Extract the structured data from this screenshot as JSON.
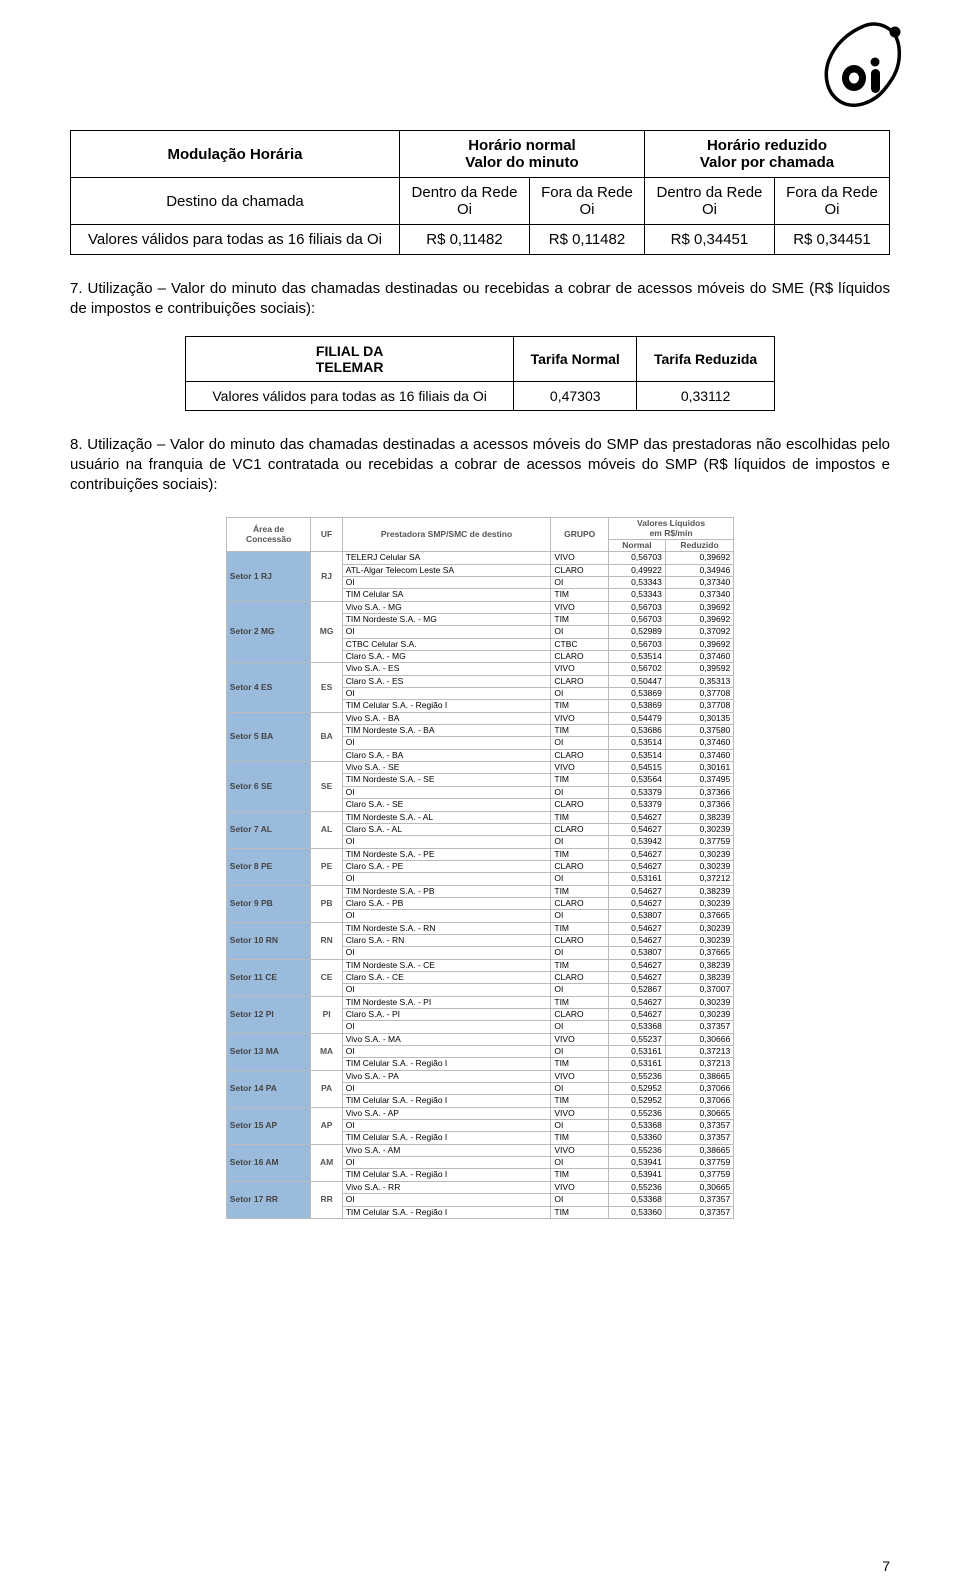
{
  "logo_label": "oi",
  "table1": {
    "r0c0": "Modulação Horária",
    "r0c1": "Horário normal\nValor do minuto",
    "r0c2": "Horário reduzido\nValor por chamada",
    "r1c0": "Destino da chamada",
    "r1c1": "Dentro da Rede\nOi",
    "r1c2": "Fora da Rede\nOi",
    "r1c3": "Dentro da Rede\nOi",
    "r1c4": "Fora da Rede\nOi",
    "r2c0": "Valores válidos para todas as 16 filiais da Oi",
    "r2c1": "R$ 0,11482",
    "r2c2": "R$ 0,11482",
    "r2c3": "R$ 0,34451",
    "r2c4": "R$ 0,34451"
  },
  "section7": "7. Utilização – Valor do minuto das chamadas destinadas ou recebidas a cobrar de acessos móveis do SME (R$ líquidos de impostos e contribuições sociais):",
  "table2": {
    "h0": "FILIAL DA\nTELEMAR",
    "h1": "Tarifa Normal",
    "h2": "Tarifa Reduzida",
    "r0": "Valores válidos para todas as 16 filiais da Oi",
    "v1": "0,47303",
    "v2": "0,33112"
  },
  "section8": "8. Utilização – Valor do minuto das chamadas destinadas a acessos móveis do SMP das prestadoras não escolhidas pelo usuário na franquia de VC1 contratada ou recebidas a cobrar de acessos móveis do SMP (R$ líquidos de impostos e contribuições sociais):",
  "big_header": {
    "area": "Área de\nConcessão",
    "uf": "UF",
    "dest": "Prestadora SMP/SMC de destino",
    "grupo": "GRUPO",
    "valores": "Valores Líquidos\nem R$/min",
    "normal": "Normal",
    "reduzido": "Reduzido"
  },
  "sectors": [
    {
      "setor": "Setor 1 RJ",
      "uf": "RJ",
      "rows": [
        [
          "TELERJ Celular SA",
          "VIVO",
          "0,56703",
          "0,39692"
        ],
        [
          "ATL-Algar Telecom Leste SA",
          "CLARO",
          "0,49922",
          "0,34946"
        ],
        [
          "OI",
          "OI",
          "0,53343",
          "0,37340"
        ],
        [
          "TIM Celular SA",
          "TIM",
          "0,53343",
          "0,37340"
        ]
      ]
    },
    {
      "setor": "Setor 2 MG",
      "uf": "MG",
      "rows": [
        [
          "Vivo S.A. - MG",
          "VIVO",
          "0,56703",
          "0,39692"
        ],
        [
          "TIM Nordeste S.A. - MG",
          "TIM",
          "0,56703",
          "0,39692"
        ],
        [
          "OI",
          "OI",
          "0,52989",
          "0,37092"
        ],
        [
          "CTBC Celular S.A.",
          "CTBC",
          "0,56703",
          "0,39692"
        ],
        [
          "Claro S.A. - MG",
          "CLARO",
          "0,53514",
          "0,37460"
        ]
      ]
    },
    {
      "setor": "Setor 4 ES",
      "uf": "ES",
      "rows": [
        [
          "Vivo S.A. - ES",
          "VIVO",
          "0,56702",
          "0,39592"
        ],
        [
          "Claro S.A. - ES",
          "CLARO",
          "0,50447",
          "0,35313"
        ],
        [
          "OI",
          "OI",
          "0,53869",
          "0,37708"
        ],
        [
          "TIM Celular S.A. - Região I",
          "TIM",
          "0,53869",
          "0,37708"
        ]
      ]
    },
    {
      "setor": "Setor 5 BA",
      "uf": "BA",
      "rows": [
        [
          "Vivo S.A. - BA",
          "VIVO",
          "0,54479",
          "0,30135"
        ],
        [
          "TIM Nordeste S.A. - BA",
          "TIM",
          "0,53686",
          "0,37580"
        ],
        [
          "OI",
          "OI",
          "0,53514",
          "0,37460"
        ],
        [
          "Claro S.A. - BA",
          "CLARO",
          "0,53514",
          "0,37460"
        ]
      ]
    },
    {
      "setor": "Setor 6 SE",
      "uf": "SE",
      "rows": [
        [
          "Vivo S.A. - SE",
          "VIVO",
          "0,54515",
          "0,30161"
        ],
        [
          "TIM Nordeste S.A. - SE",
          "TIM",
          "0,53564",
          "0,37495"
        ],
        [
          "OI",
          "OI",
          "0,53379",
          "0,37366"
        ],
        [
          "Claro S.A. - SE",
          "CLARO",
          "0,53379",
          "0,37366"
        ]
      ]
    },
    {
      "setor": "Setor 7 AL",
      "uf": "AL",
      "rows": [
        [
          "TIM Nordeste S.A. - AL",
          "TIM",
          "0,54627",
          "0,38239"
        ],
        [
          "Claro S.A. - AL",
          "CLARO",
          "0,54627",
          "0,30239"
        ],
        [
          "OI",
          "OI",
          "0,53942",
          "0,37759"
        ]
      ]
    },
    {
      "setor": "Setor 8 PE",
      "uf": "PE",
      "rows": [
        [
          "TIM Nordeste S.A. - PE",
          "TIM",
          "0,54627",
          "0,30239"
        ],
        [
          "Claro S.A. - PE",
          "CLARO",
          "0,54627",
          "0,30239"
        ],
        [
          "OI",
          "OI",
          "0,53161",
          "0,37212"
        ]
      ]
    },
    {
      "setor": "Setor 9 PB",
      "uf": "PB",
      "rows": [
        [
          "TIM Nordeste S.A. - PB",
          "TIM",
          "0,54627",
          "0,38239"
        ],
        [
          "Claro S.A. - PB",
          "CLARO",
          "0,54627",
          "0,30239"
        ],
        [
          "OI",
          "OI",
          "0,53807",
          "0,37665"
        ]
      ]
    },
    {
      "setor": "Setor 10 RN",
      "uf": "RN",
      "rows": [
        [
          "TIM Nordeste S.A. - RN",
          "TIM",
          "0,54627",
          "0,30239"
        ],
        [
          "Claro S.A. - RN",
          "CLARO",
          "0,54627",
          "0,30239"
        ],
        [
          "OI",
          "OI",
          "0,53807",
          "0,37665"
        ]
      ]
    },
    {
      "setor": "Setor 11 CE",
      "uf": "CE",
      "rows": [
        [
          "TIM Nordeste S.A. - CE",
          "TIM",
          "0,54627",
          "0,38239"
        ],
        [
          "Claro S.A. - CE",
          "CLARO",
          "0,54627",
          "0,38239"
        ],
        [
          "OI",
          "OI",
          "0,52867",
          "0,37007"
        ]
      ]
    },
    {
      "setor": "Setor 12 PI",
      "uf": "PI",
      "rows": [
        [
          "TIM Nordeste S.A. - PI",
          "TIM",
          "0,54627",
          "0,30239"
        ],
        [
          "Claro S.A. - PI",
          "CLARO",
          "0,54627",
          "0,30239"
        ],
        [
          "OI",
          "OI",
          "0,53368",
          "0,37357"
        ]
      ]
    },
    {
      "setor": "Setor 13 MA",
      "uf": "MA",
      "rows": [
        [
          "Vivo S.A. - MA",
          "VIVO",
          "0,55237",
          "0,30666"
        ],
        [
          "OI",
          "OI",
          "0,53161",
          "0,37213"
        ],
        [
          "TIM Celular S.A. - Região I",
          "TIM",
          "0,53161",
          "0,37213"
        ]
      ]
    },
    {
      "setor": "Setor 14 PA",
      "uf": "PA",
      "rows": [
        [
          "Vivo S.A. - PA",
          "VIVO",
          "0,55236",
          "0,38665"
        ],
        [
          "OI",
          "OI",
          "0,52952",
          "0,37066"
        ],
        [
          "TIM Celular S.A. - Região I",
          "TIM",
          "0,52952",
          "0,37066"
        ]
      ]
    },
    {
      "setor": "Setor 15 AP",
      "uf": "AP",
      "rows": [
        [
          "Vivo S.A. - AP",
          "VIVO",
          "0,55236",
          "0,30665"
        ],
        [
          "OI",
          "OI",
          "0,53368",
          "0,37357"
        ],
        [
          "TIM Celular S.A. - Região I",
          "TIM",
          "0,53360",
          "0,37357"
        ]
      ]
    },
    {
      "setor": "Setor 16 AM",
      "uf": "AM",
      "rows": [
        [
          "Vivo S.A. - AM",
          "VIVO",
          "0,55236",
          "0,38665"
        ],
        [
          "OI",
          "OI",
          "0,53941",
          "0,37759"
        ],
        [
          "TIM Celular S.A. - Região I",
          "TIM",
          "0,53941",
          "0,37759"
        ]
      ]
    },
    {
      "setor": "Setor 17 RR",
      "uf": "RR",
      "rows": [
        [
          "Vivo S.A. - RR",
          "VIVO",
          "0,55236",
          "0,30665"
        ],
        [
          "OI",
          "OI",
          "0,53368",
          "0,37357"
        ],
        [
          "TIM Celular S.A. - Região I",
          "TIM",
          "0,53360",
          "0,37357"
        ]
      ]
    }
  ],
  "page_number": "7"
}
